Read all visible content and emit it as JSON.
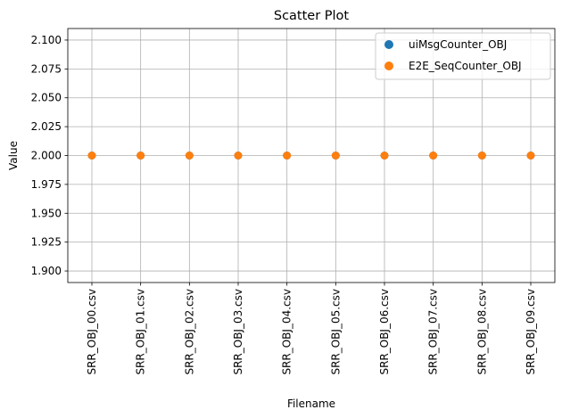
{
  "chart_data": {
    "type": "scatter",
    "title": "Scatter Plot",
    "xlabel": "Filename",
    "ylabel": "Value",
    "categories": [
      "SRR_OBJ_00.csv",
      "SRR_OBJ_01.csv",
      "SRR_OBJ_02.csv",
      "SRR_OBJ_03.csv",
      "SRR_OBJ_04.csv",
      "SRR_OBJ_05.csv",
      "SRR_OBJ_06.csv",
      "SRR_OBJ_07.csv",
      "SRR_OBJ_08.csv",
      "SRR_OBJ_09.csv"
    ],
    "series": [
      {
        "name": "uiMsgCounter_OBJ",
        "color": "#1f77b4",
        "values": [
          2,
          2,
          2,
          2,
          2,
          2,
          2,
          2,
          2,
          2
        ]
      },
      {
        "name": "E2E_SeqCounter_OBJ",
        "color": "#ff7f0e",
        "values": [
          2,
          2,
          2,
          2,
          2,
          2,
          2,
          2,
          2,
          2
        ]
      }
    ],
    "ylim": [
      1.89,
      2.11
    ],
    "yticks": [
      1.9,
      1.925,
      1.95,
      1.975,
      2.0,
      2.025,
      2.05,
      2.075,
      2.1
    ],
    "ytick_labels": [
      "1.900",
      "1.925",
      "1.950",
      "1.975",
      "2.000",
      "2.025",
      "2.050",
      "2.075",
      "2.100"
    ],
    "grid": true,
    "legend_position": "top-right"
  }
}
